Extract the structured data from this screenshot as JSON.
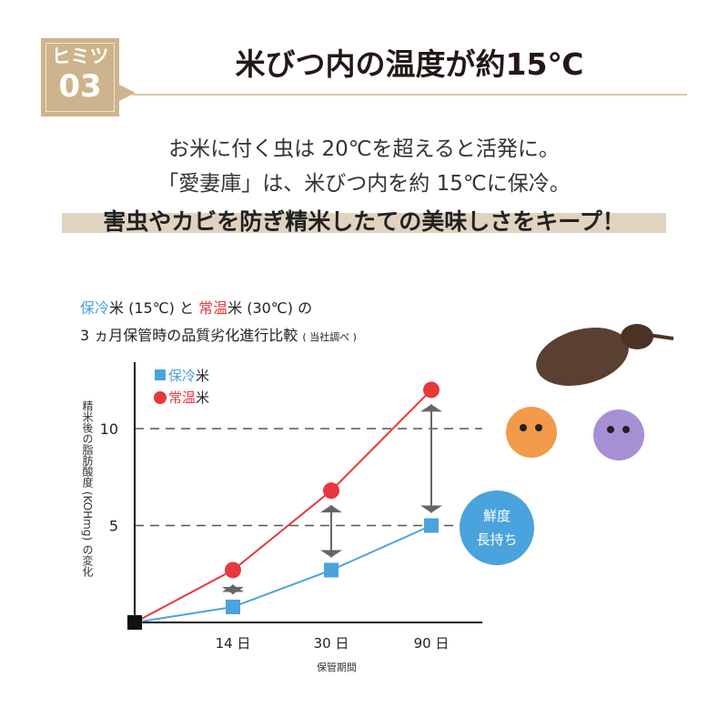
{
  "header": {
    "badge_top": "ヒミツ",
    "badge_number": "03",
    "title": "米びつ内の温度が約15℃"
  },
  "intro": {
    "line1": "お米に付く虫は 20℃を超えると活発に。",
    "line2": "「愛妻庫」は、米びつ内を約 15℃に保冷。",
    "highlight": "害虫やカビを防ぎ精米したての美味しさをキープ！"
  },
  "chart_title": {
    "blue_part": "保冷",
    "mid1": "米 (15℃) と ",
    "red_part": "常温",
    "mid2": "米 (30℃) の",
    "line2": "3 ヵ月保管時の品質劣化進行比較",
    "note": "( 当社調べ )"
  },
  "badge_bubble": {
    "line1": "鮮度",
    "line2": "長持ち"
  },
  "colors": {
    "blue": "#4aa3dc",
    "red": "#e8373e",
    "gold": "#cdb48c",
    "arrow": "#666666"
  },
  "chart_data": {
    "type": "line",
    "categories": [
      "0",
      "14 日",
      "30 日",
      "90 日"
    ],
    "x_tick_labels": [
      "14 日",
      "30 日",
      "90 日"
    ],
    "xlabel": "保管期間",
    "ylabel": "精米後の脂肪酸度 (KOHmg) の変化",
    "y_ticks": [
      5,
      10
    ],
    "ylim": [
      0,
      13
    ],
    "grid": "dashed at 5 and 10",
    "legend": "top-left",
    "series": [
      {
        "name": "保冷米",
        "legend_prefix": "保冷",
        "legend_suffix": "米",
        "marker": "square",
        "color": "#4aa3dc",
        "values": [
          0,
          0.8,
          2.7,
          5.0
        ]
      },
      {
        "name": "常温米",
        "legend_prefix": "常温",
        "legend_suffix": "米",
        "marker": "circle",
        "color": "#e8373e",
        "values": [
          0,
          2.7,
          6.8,
          12.0
        ]
      }
    ]
  }
}
